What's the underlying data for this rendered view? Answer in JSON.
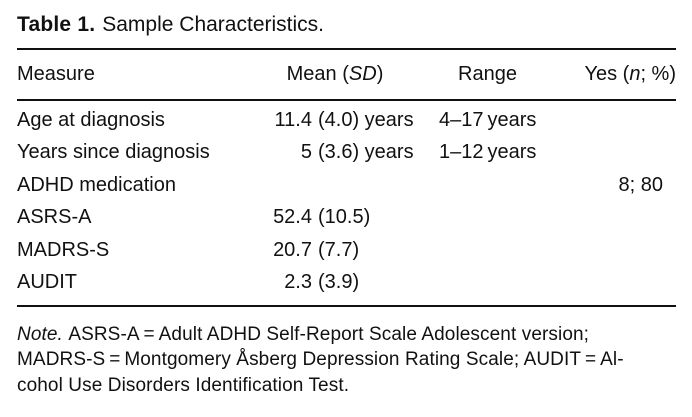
{
  "colors": {
    "text": "#111111",
    "background": "#ffffff",
    "rule": "#111111"
  },
  "title": {
    "number": "Table 1.",
    "caption": "Sample Characteristics."
  },
  "table": {
    "headers": {
      "measure": "Measure",
      "mean": {
        "pre": "Mean (",
        "italic": "SD",
        "post": ")"
      },
      "range": "Range",
      "yes": {
        "pre": "Yes (",
        "italic": "n",
        "post": "; %)"
      }
    },
    "rows": [
      {
        "measure": "Age at diagnosis",
        "mean_value": "11.4",
        "mean_sd": "(4.0) years",
        "range": "4–17 years",
        "yes": ""
      },
      {
        "measure": "Years since diagnosis",
        "mean_value": "5",
        "mean_sd": "(3.6) years",
        "range": "1–12 years",
        "yes": ""
      },
      {
        "measure": "ADHD medication",
        "mean_value": "",
        "mean_sd": "",
        "range": "",
        "yes": "8; 80"
      },
      {
        "measure": "ASRS-A",
        "mean_value": "52.4",
        "mean_sd": "(10.5)",
        "range": "",
        "yes": ""
      },
      {
        "measure": "MADRS-S",
        "mean_value": "20.7",
        "mean_sd": "(7.7)",
        "range": "",
        "yes": ""
      },
      {
        "measure": "AUDIT",
        "mean_value": "2.3",
        "mean_sd": "(3.9)",
        "range": "",
        "yes": ""
      }
    ]
  },
  "note": {
    "label": "Note.",
    "line1": "ASRS-A = Adult ADHD Self-Report Scale Adolescent version;",
    "line2": "MADRS-S = Montgomery Åsberg Depression Rating Scale; AUDIT = Al-",
    "line3": "cohol Use Disorders Identification Test."
  }
}
